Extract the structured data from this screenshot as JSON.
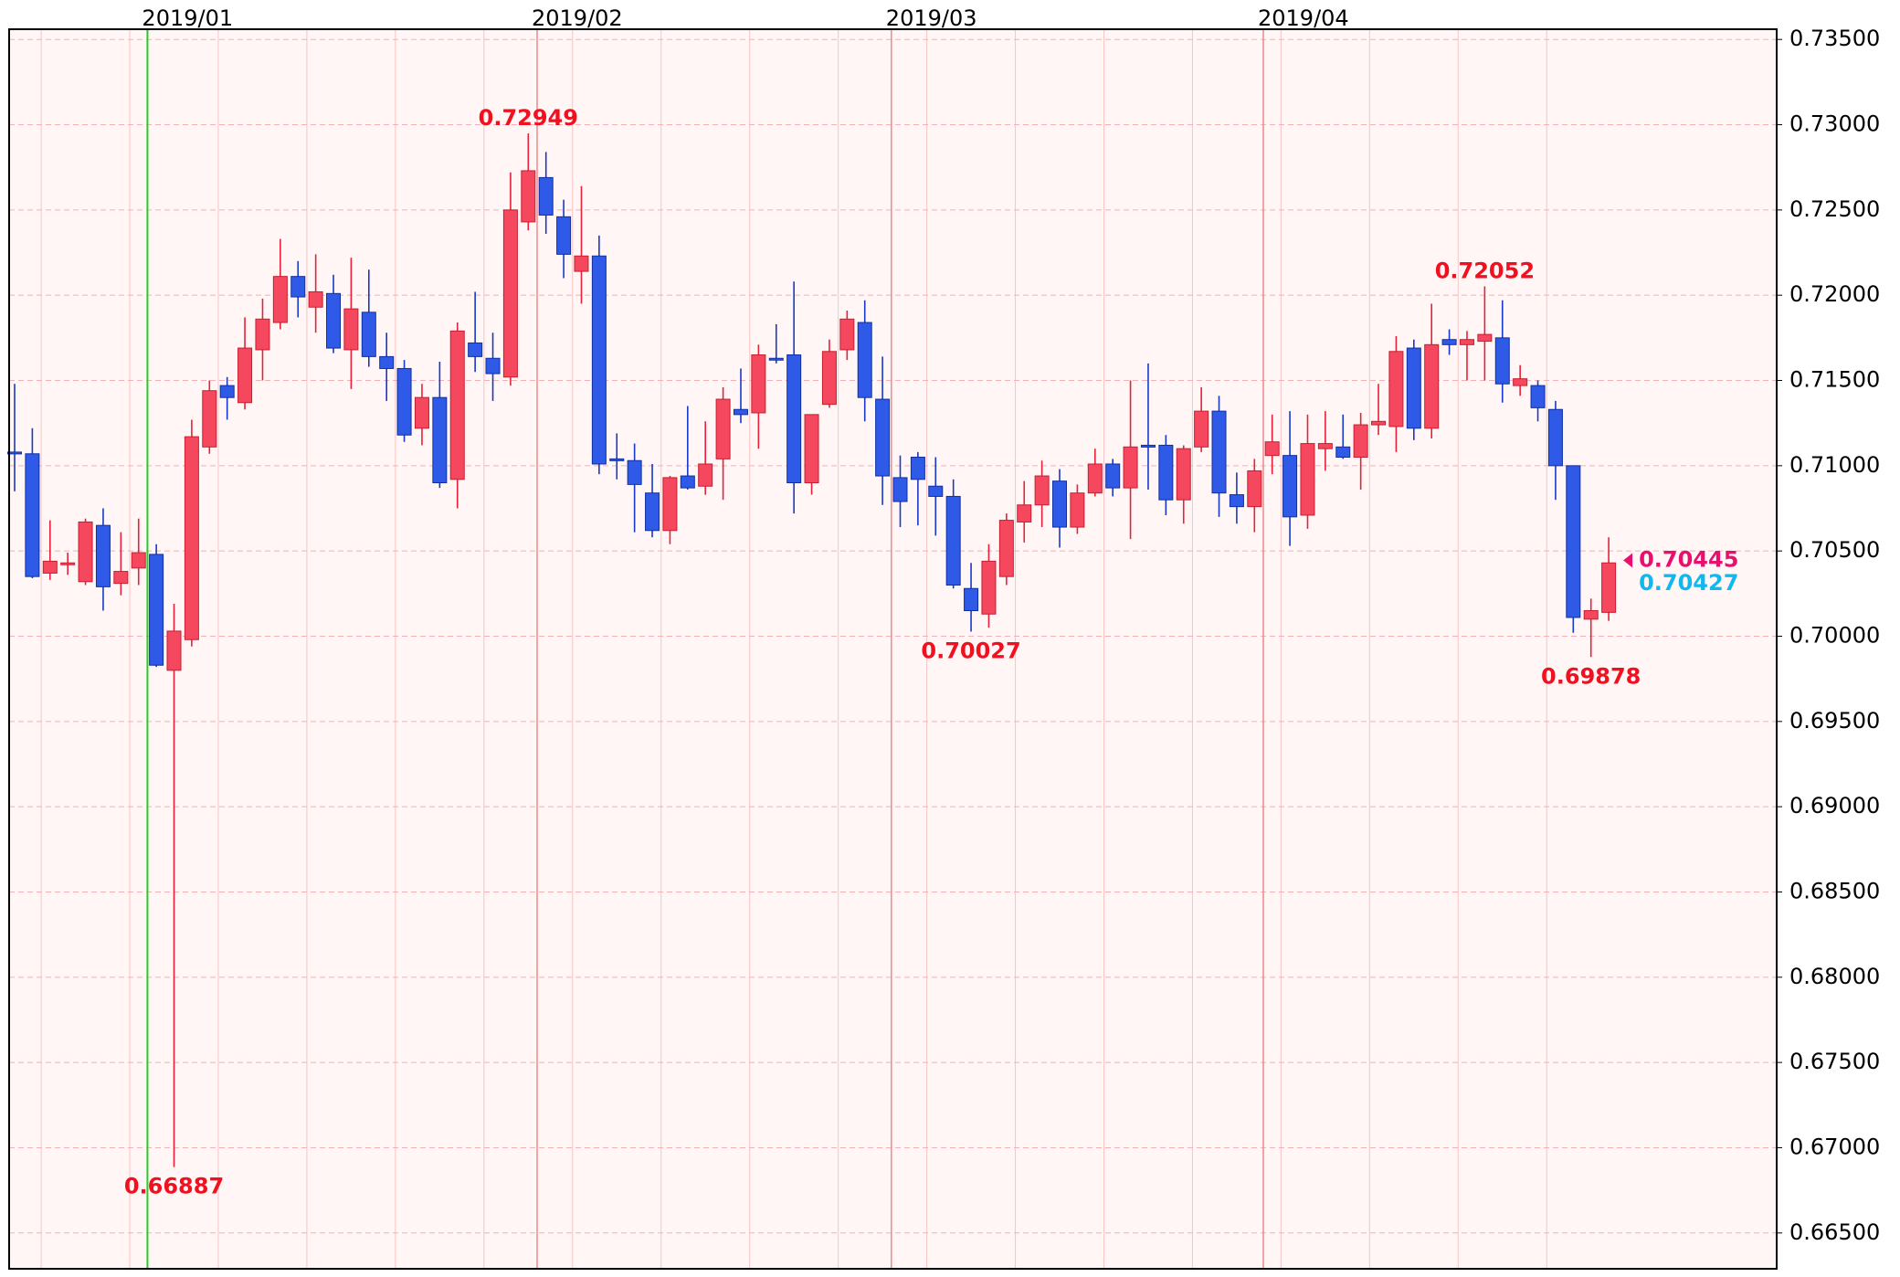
{
  "chart_data": {
    "type": "candlestick",
    "categories": [
      null,
      null,
      null,
      null,
      null,
      null,
      null,
      null,
      "2019/01",
      null,
      null,
      null,
      null,
      null,
      null,
      null,
      null,
      null,
      null,
      null,
      null,
      null,
      null,
      null,
      null,
      null,
      null,
      null,
      null,
      null,
      "2019/02",
      null,
      null,
      null,
      null,
      null,
      null,
      null,
      null,
      null,
      null,
      null,
      null,
      null,
      null,
      null,
      null,
      null,
      null,
      null,
      "2019/03",
      null,
      null,
      null,
      null,
      null,
      null,
      null,
      null,
      null,
      null,
      null,
      null,
      null,
      null,
      null,
      null,
      null,
      null,
      null,
      null,
      "2019/04",
      null,
      null,
      null,
      null,
      null,
      null,
      null,
      null,
      null,
      null,
      null,
      null,
      null,
      null,
      null,
      null,
      null,
      null,
      null
    ],
    "open": [
      0.7108,
      0.7107,
      0.7037,
      0.7042,
      0.7032,
      0.7065,
      0.7031,
      0.704,
      0.7048,
      0.698,
      0.6998,
      0.7111,
      0.7147,
      0.7137,
      0.7168,
      0.7184,
      0.7211,
      0.7193,
      0.7201,
      0.7168,
      0.719,
      0.7164,
      0.7157,
      0.7122,
      0.714,
      0.7092,
      0.7172,
      0.7163,
      0.7152,
      0.7243,
      0.7269,
      0.7246,
      0.7214,
      0.7223,
      0.7104,
      0.7103,
      0.7084,
      0.7062,
      0.7094,
      0.7088,
      0.7104,
      0.7133,
      0.7131,
      0.7163,
      0.7165,
      0.709,
      0.7136,
      0.7168,
      0.7184,
      0.7139,
      0.7093,
      0.7105,
      0.7088,
      0.7082,
      0.7028,
      0.7013,
      0.7035,
      0.7067,
      0.7077,
      0.7091,
      0.7064,
      0.7084,
      0.7101,
      0.7087,
      0.7112,
      0.7112,
      0.708,
      0.7111,
      0.7132,
      0.7083,
      0.7076,
      0.7106,
      0.7106,
      0.7071,
      0.711,
      0.7111,
      0.7105,
      0.7124,
      0.7123,
      0.7169,
      0.7122,
      0.7174,
      0.7171,
      0.7173,
      0.7175,
      0.7147,
      0.7147,
      0.7133,
      0.71,
      0.701,
      0.7014
    ],
    "high": [
      0.7148,
      0.7122,
      0.7068,
      0.7049,
      0.7069,
      0.7075,
      0.7061,
      0.7069,
      0.7054,
      0.7019,
      0.7127,
      0.715,
      0.7152,
      0.7187,
      0.7198,
      0.7233,
      0.722,
      0.7224,
      0.7212,
      0.7222,
      0.7215,
      0.7178,
      0.7162,
      0.7148,
      0.7161,
      0.7184,
      0.7202,
      0.7178,
      0.7272,
      0.72949,
      0.7284,
      0.7256,
      0.7264,
      0.7235,
      0.7119,
      0.7113,
      0.7101,
      0.7094,
      0.7135,
      0.7126,
      0.7146,
      0.7157,
      0.7171,
      0.7183,
      0.7208,
      0.713,
      0.7174,
      0.7191,
      0.7197,
      0.7164,
      0.7106,
      0.7108,
      0.7105,
      0.7092,
      0.7043,
      0.7054,
      0.7072,
      0.7091,
      0.7103,
      0.7098,
      0.7089,
      0.711,
      0.7104,
      0.715,
      0.716,
      0.7118,
      0.7112,
      0.7146,
      0.7141,
      0.7096,
      0.7104,
      0.713,
      0.7132,
      0.713,
      0.7132,
      0.713,
      0.7131,
      0.7148,
      0.7176,
      0.7174,
      0.7195,
      0.718,
      0.7179,
      0.72052,
      0.7197,
      0.7159,
      0.715,
      0.7138,
      0.71,
      0.7022,
      0.7058
    ],
    "low": [
      0.7085,
      0.7034,
      0.7033,
      0.7036,
      0.703,
      0.7015,
      0.7024,
      0.703,
      0.6982,
      0.66887,
      0.6994,
      0.7107,
      0.7127,
      0.7133,
      0.715,
      0.718,
      0.7187,
      0.7178,
      0.7166,
      0.7145,
      0.7158,
      0.7138,
      0.7114,
      0.7112,
      0.7087,
      0.7075,
      0.7155,
      0.7138,
      0.7147,
      0.7238,
      0.7236,
      0.721,
      0.7195,
      0.7095,
      0.7092,
      0.7061,
      0.7058,
      0.7054,
      0.7086,
      0.7083,
      0.708,
      0.7125,
      0.711,
      0.716,
      0.7072,
      0.7083,
      0.7134,
      0.7162,
      0.7126,
      0.7077,
      0.7064,
      0.7065,
      0.7059,
      0.7028,
      0.70027,
      0.7005,
      0.703,
      0.7055,
      0.7064,
      0.7052,
      0.706,
      0.7082,
      0.7082,
      0.7057,
      0.7086,
      0.7071,
      0.7066,
      0.7108,
      0.707,
      0.7066,
      0.7061,
      0.7095,
      0.7053,
      0.7063,
      0.7097,
      0.7104,
      0.7086,
      0.7118,
      0.7108,
      0.7115,
      0.7116,
      0.7165,
      0.715,
      0.715,
      0.7137,
      0.7141,
      0.7126,
      0.708,
      0.7002,
      0.69878,
      0.7009
    ],
    "close": [
      0.7107,
      0.7035,
      0.7044,
      0.7043,
      0.7067,
      0.7029,
      0.7038,
      0.7049,
      0.6983,
      0.7003,
      0.7117,
      0.7144,
      0.714,
      0.7169,
      0.7186,
      0.7211,
      0.7199,
      0.7202,
      0.7169,
      0.7192,
      0.7164,
      0.7157,
      0.7118,
      0.714,
      0.709,
      0.7179,
      0.7164,
      0.7154,
      0.725,
      0.7273,
      0.7247,
      0.7224,
      0.7223,
      0.7101,
      0.7103,
      0.7089,
      0.7062,
      0.7093,
      0.7087,
      0.7101,
      0.7139,
      0.713,
      0.7165,
      0.7162,
      0.709,
      0.713,
      0.7167,
      0.7186,
      0.714,
      0.7094,
      0.7079,
      0.7092,
      0.7082,
      0.703,
      0.7015,
      0.7044,
      0.7068,
      0.7077,
      0.7094,
      0.7064,
      0.7084,
      0.7101,
      0.7087,
      0.7111,
      0.7111,
      0.708,
      0.711,
      0.7132,
      0.7084,
      0.7076,
      0.7097,
      0.7114,
      0.707,
      0.7113,
      0.7113,
      0.7105,
      0.7124,
      0.7126,
      0.7167,
      0.7122,
      0.7171,
      0.7171,
      0.7174,
      0.7177,
      0.7148,
      0.7151,
      0.7134,
      0.71,
      0.7011,
      0.7015,
      0.7043
    ],
    "up_color": "#f5485e",
    "down_color": "#2f5ae8",
    "annotation_color": "#f01020",
    "price_lines": [
      {
        "value": 0.70445,
        "color": "#e8106e"
      },
      {
        "value": 0.70427,
        "color": "#10b8f0"
      }
    ],
    "ylim": [
      0.6629,
      0.7356
    ],
    "yticks": [
      {
        "value": 0.665,
        "label": "0.66500"
      },
      {
        "value": 0.67,
        "label": "0.67000"
      },
      {
        "value": 0.675,
        "label": "0.67500"
      },
      {
        "value": 0.68,
        "label": "0.68000"
      },
      {
        "value": 0.685,
        "label": "0.68500"
      },
      {
        "value": 0.69,
        "label": "0.69000"
      },
      {
        "value": 0.695,
        "label": "0.69500"
      },
      {
        "value": 0.7,
        "label": "0.70000"
      },
      {
        "value": 0.705,
        "label": "0.70500"
      },
      {
        "value": 0.71,
        "label": "0.71000"
      },
      {
        "value": 0.715,
        "label": "0.71500"
      },
      {
        "value": 0.72,
        "label": "0.72000"
      },
      {
        "value": 0.725,
        "label": "0.72500"
      },
      {
        "value": 0.73,
        "label": "0.73000"
      },
      {
        "value": 0.735,
        "label": "0.73500"
      }
    ],
    "grid": true
  }
}
